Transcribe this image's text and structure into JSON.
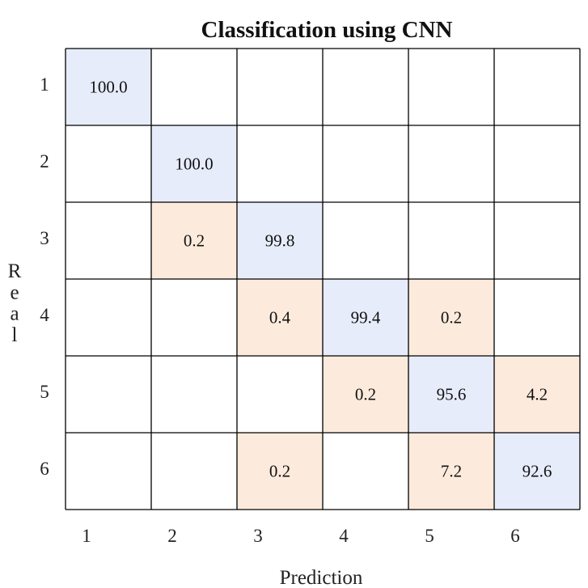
{
  "chart_data": {
    "type": "heatmap",
    "title": "Classification using CNN",
    "xlabel": "Prediction",
    "ylabel": "Real",
    "x_categories": [
      "1",
      "2",
      "3",
      "4",
      "5",
      "6"
    ],
    "y_categories": [
      "1",
      "2",
      "3",
      "4",
      "5",
      "6"
    ],
    "cells": [
      {
        "row": 0,
        "col": 0,
        "value": "100.0",
        "kind": "correct"
      },
      {
        "row": 1,
        "col": 1,
        "value": "100.0",
        "kind": "correct"
      },
      {
        "row": 2,
        "col": 1,
        "value": "0.2",
        "kind": "error"
      },
      {
        "row": 2,
        "col": 2,
        "value": "99.8",
        "kind": "correct"
      },
      {
        "row": 3,
        "col": 2,
        "value": "0.4",
        "kind": "error"
      },
      {
        "row": 3,
        "col": 3,
        "value": "99.4",
        "kind": "correct"
      },
      {
        "row": 3,
        "col": 4,
        "value": "0.2",
        "kind": "error"
      },
      {
        "row": 4,
        "col": 3,
        "value": "0.2",
        "kind": "error"
      },
      {
        "row": 4,
        "col": 4,
        "value": "95.6",
        "kind": "correct"
      },
      {
        "row": 4,
        "col": 5,
        "value": "4.2",
        "kind": "error"
      },
      {
        "row": 5,
        "col": 2,
        "value": "0.2",
        "kind": "error"
      },
      {
        "row": 5,
        "col": 4,
        "value": "7.2",
        "kind": "error"
      },
      {
        "row": 5,
        "col": 5,
        "value": "92.6",
        "kind": "correct"
      }
    ],
    "colors": {
      "correct": "#e7ecfb",
      "error": "#fcebdc",
      "empty": "#ffffff",
      "grid": "#000000"
    },
    "grid": true,
    "legend": "none"
  }
}
